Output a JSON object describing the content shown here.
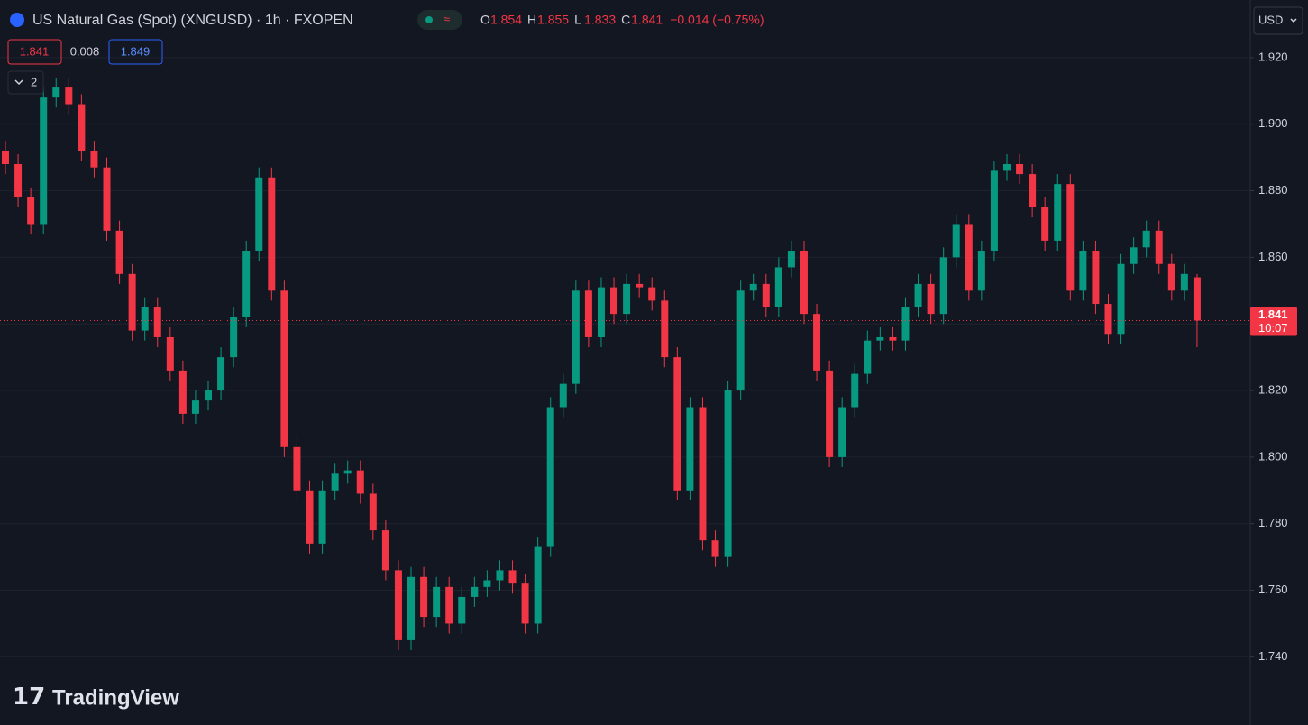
{
  "chart_data": {
    "type": "candlestick",
    "title": "US Natural Gas (Spot) (XNGUSD) · 1h · FXOPEN",
    "legend_values": [
      {
        "key": "O",
        "value": "1.854"
      },
      {
        "key": "H",
        "value": "1.855"
      },
      {
        "key": "L",
        "value": "1.833"
      },
      {
        "key": "C",
        "value": "1.841"
      }
    ],
    "change": "−0.014 (−0.75%)",
    "bid": "1.841",
    "spread": "0.008",
    "ask": "1.849",
    "indicator_count": "2",
    "currency": "USD",
    "last_price_label": "1.841",
    "countdown": "10:07",
    "watermark": "TradingView",
    "up_color": "#089981",
    "down_color": "#f23645",
    "grid": true,
    "ylim": [
      1.7206,
      1.9373
    ],
    "yticks": [
      {
        "value": 1.74,
        "label": "1.740"
      },
      {
        "value": 1.76,
        "label": "1.760"
      },
      {
        "value": 1.78,
        "label": "1.780"
      },
      {
        "value": 1.8,
        "label": "1.800"
      },
      {
        "value": 1.82,
        "label": "1.820"
      },
      {
        "value": 1.84,
        "label": "1.840"
      },
      {
        "value": 1.86,
        "label": "1.860"
      },
      {
        "value": 1.88,
        "label": "1.880"
      },
      {
        "value": 1.9,
        "label": "1.900"
      },
      {
        "value": 1.92,
        "label": "1.920"
      }
    ],
    "open": [
      1.892,
      1.888,
      1.878,
      1.87,
      1.908,
      1.911,
      1.906,
      1.892,
      1.887,
      1.868,
      1.855,
      1.838,
      1.845,
      1.836,
      1.826,
      1.813,
      1.817,
      1.82,
      1.83,
      1.842,
      1.862,
      1.884,
      1.85,
      1.803,
      1.79,
      1.774,
      1.79,
      1.795,
      1.796,
      1.789,
      1.778,
      1.766,
      1.745,
      1.764,
      1.752,
      1.761,
      1.75,
      1.758,
      1.761,
      1.763,
      1.766,
      1.762,
      1.75,
      1.773,
      1.815,
      1.822,
      1.85,
      1.836,
      1.851,
      1.843,
      1.852,
      1.851,
      1.847,
      1.83,
      1.79,
      1.815,
      1.775,
      1.77,
      1.82,
      1.85,
      1.852,
      1.845,
      1.857,
      1.862,
      1.843,
      1.826,
      1.8,
      1.815,
      1.825,
      1.835,
      1.836,
      1.835,
      1.845,
      1.852,
      1.843,
      1.86,
      1.87,
      1.85,
      1.862,
      1.886,
      1.888,
      1.885,
      1.875,
      1.865,
      1.882,
      1.85,
      1.862,
      1.846,
      1.837,
      1.858,
      1.863,
      1.868,
      1.858,
      1.85,
      1.854
    ],
    "high": [
      1.895,
      1.891,
      1.881,
      1.911,
      1.914,
      1.914,
      1.909,
      1.895,
      1.89,
      1.871,
      1.858,
      1.848,
      1.848,
      1.839,
      1.829,
      1.82,
      1.823,
      1.833,
      1.845,
      1.865,
      1.887,
      1.887,
      1.853,
      1.806,
      1.793,
      1.793,
      1.798,
      1.799,
      1.799,
      1.792,
      1.781,
      1.769,
      1.767,
      1.767,
      1.764,
      1.764,
      1.761,
      1.764,
      1.766,
      1.769,
      1.769,
      1.765,
      1.776,
      1.818,
      1.825,
      1.853,
      1.853,
      1.854,
      1.854,
      1.855,
      1.855,
      1.854,
      1.85,
      1.833,
      1.818,
      1.818,
      1.778,
      1.823,
      1.853,
      1.855,
      1.855,
      1.86,
      1.865,
      1.865,
      1.846,
      1.829,
      1.818,
      1.828,
      1.838,
      1.839,
      1.839,
      1.848,
      1.855,
      1.855,
      1.863,
      1.873,
      1.873,
      1.865,
      1.889,
      1.891,
      1.891,
      1.888,
      1.878,
      1.885,
      1.885,
      1.865,
      1.865,
      1.849,
      1.861,
      1.866,
      1.871,
      1.871,
      1.861,
      1.858,
      1.855
    ],
    "low": [
      1.885,
      1.875,
      1.867,
      1.867,
      1.905,
      1.903,
      1.889,
      1.884,
      1.865,
      1.852,
      1.835,
      1.835,
      1.833,
      1.823,
      1.81,
      1.81,
      1.814,
      1.817,
      1.827,
      1.839,
      1.859,
      1.847,
      1.8,
      1.787,
      1.771,
      1.771,
      1.787,
      1.792,
      1.786,
      1.775,
      1.763,
      1.742,
      1.742,
      1.749,
      1.749,
      1.747,
      1.747,
      1.755,
      1.758,
      1.76,
      1.759,
      1.747,
      1.747,
      1.77,
      1.812,
      1.819,
      1.833,
      1.833,
      1.84,
      1.84,
      1.848,
      1.844,
      1.827,
      1.787,
      1.787,
      1.772,
      1.767,
      1.767,
      1.817,
      1.847,
      1.842,
      1.842,
      1.854,
      1.84,
      1.823,
      1.797,
      1.797,
      1.812,
      1.822,
      1.832,
      1.832,
      1.832,
      1.842,
      1.84,
      1.84,
      1.857,
      1.847,
      1.847,
      1.859,
      1.883,
      1.882,
      1.872,
      1.862,
      1.862,
      1.847,
      1.847,
      1.843,
      1.834,
      1.834,
      1.855,
      1.86,
      1.855,
      1.847,
      1.847,
      1.833
    ],
    "close": [
      1.888,
      1.878,
      1.87,
      1.908,
      1.911,
      1.906,
      1.892,
      1.887,
      1.868,
      1.855,
      1.838,
      1.845,
      1.836,
      1.826,
      1.813,
      1.817,
      1.82,
      1.83,
      1.842,
      1.862,
      1.884,
      1.85,
      1.803,
      1.79,
      1.774,
      1.79,
      1.795,
      1.796,
      1.789,
      1.778,
      1.766,
      1.745,
      1.764,
      1.752,
      1.761,
      1.75,
      1.758,
      1.761,
      1.763,
      1.766,
      1.762,
      1.75,
      1.773,
      1.815,
      1.822,
      1.85,
      1.836,
      1.851,
      1.843,
      1.852,
      1.851,
      1.847,
      1.83,
      1.79,
      1.815,
      1.775,
      1.77,
      1.82,
      1.85,
      1.852,
      1.845,
      1.857,
      1.862,
      1.843,
      1.826,
      1.8,
      1.815,
      1.825,
      1.835,
      1.836,
      1.835,
      1.845,
      1.852,
      1.843,
      1.86,
      1.87,
      1.85,
      1.862,
      1.886,
      1.888,
      1.885,
      1.875,
      1.865,
      1.882,
      1.85,
      1.862,
      1.846,
      1.837,
      1.858,
      1.863,
      1.868,
      1.858,
      1.85,
      1.855,
      1.841
    ]
  }
}
